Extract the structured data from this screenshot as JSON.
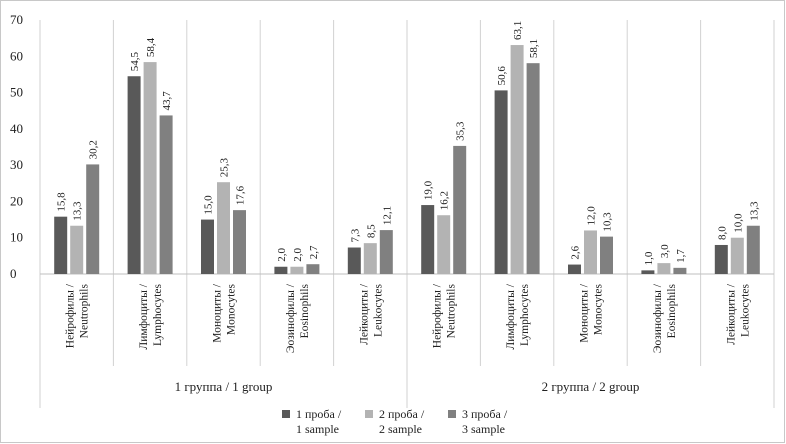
{
  "chart_data": {
    "type": "bar",
    "title": "",
    "xlabel": "",
    "ylabel": "",
    "ylim": [
      0,
      70
    ],
    "yticks": [
      "0",
      "10",
      "20",
      "30",
      "40",
      "50",
      "60",
      "70"
    ],
    "grid": false,
    "legend_position": "bottom",
    "groups": [
      {
        "label": "1 группа / 1 group",
        "categories": [
          {
            "line1": "Нейрофилы /",
            "line2": "Neutrophils"
          },
          {
            "line1": "Лимфоциты /",
            "line2": "Lymphocytes"
          },
          {
            "line1": "Моноциты /",
            "line2": "Monocytes"
          },
          {
            "line1": "Эозинофилы /",
            "line2": "Eosinophils"
          },
          {
            "line1": "Лейкоциты /",
            "line2": "Leukocytes"
          }
        ]
      },
      {
        "label": "2 группа / 2 group",
        "categories": [
          {
            "line1": "Нейрофилы /",
            "line2": "Neutrophils"
          },
          {
            "line1": "Лимфоциты /",
            "line2": "Lymphocytes"
          },
          {
            "line1": "Моноциты /",
            "line2": "Monocytes"
          },
          {
            "line1": "Эозинофилы /",
            "line2": "Eosinophils"
          },
          {
            "line1": "Лейкоциты /",
            "line2": "Leukocytes"
          }
        ]
      }
    ],
    "series": [
      {
        "name_line1": "1 проба /",
        "name_line2": "1 sample",
        "color": "#595959",
        "values": [
          15.8,
          54.5,
          15.0,
          2.0,
          7.3,
          19.0,
          50.6,
          2.6,
          1.0,
          8.0
        ],
        "labels": [
          "15,8",
          "54,5",
          "15,0",
          "2,0",
          "7,3",
          "19,0",
          "50,6",
          "2,6",
          "1,0",
          "8,0"
        ]
      },
      {
        "name_line1": "2 проба /",
        "name_line2": "2 sample",
        "color": "#b3b3b3",
        "values": [
          13.3,
          58.4,
          25.3,
          2.0,
          8.5,
          16.2,
          63.1,
          12.0,
          3.0,
          10.0
        ],
        "labels": [
          "13,3",
          "58,4",
          "25,3",
          "2,0",
          "8,5",
          "16,2",
          "63,1",
          "12,0",
          "3,0",
          "10,0"
        ]
      },
      {
        "name_line1": "3 проба /",
        "name_line2": "3 sample",
        "color": "#808080",
        "values": [
          30.2,
          43.7,
          17.6,
          2.7,
          12.1,
          35.3,
          58.1,
          10.3,
          1.7,
          13.3
        ],
        "labels": [
          "30,2",
          "43,7",
          "17,6",
          "2,7",
          "12,1",
          "35,3",
          "58,1",
          "10,3",
          "1,7",
          "13,3"
        ]
      }
    ]
  }
}
